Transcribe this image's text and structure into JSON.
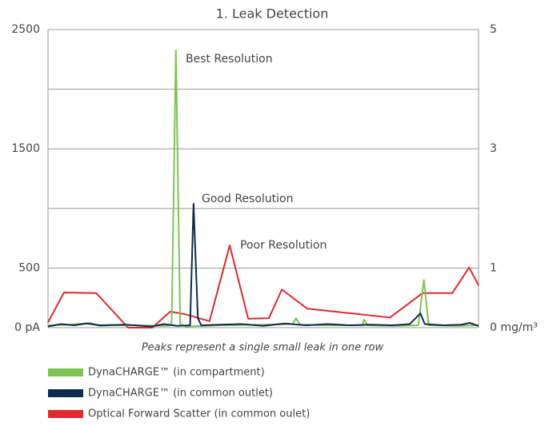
{
  "chart_data": {
    "type": "line",
    "title": "1. Leak Detection",
    "caption": "Peaks represent a single small leak in one row",
    "xlim": [
      0,
      100
    ],
    "ylim": [
      0,
      2500
    ],
    "yticks": [
      {
        "value": 0,
        "label": "0 pA"
      },
      500,
      1500,
      2500
    ],
    "y2lim": [
      0,
      5
    ],
    "y2ticks": [
      {
        "value": 0,
        "label": "0 mg/m³"
      },
      1,
      3,
      5
    ],
    "ygrid": [
      500,
      1000,
      1500,
      2000,
      2500
    ],
    "legend": "bottom-left",
    "annotations": [
      "Best Resolution",
      "Good Resolution",
      "Poor Resolution"
    ],
    "series": [
      {
        "name": "DynaCHARGE™ (in compartment)",
        "color": "#7dc353",
        "x": [
          0,
          5,
          10,
          12,
          15,
          20,
          27,
          28.7,
          29.7,
          30.7,
          32,
          40,
          50,
          56.8,
          57.6,
          58.5,
          65,
          73,
          73.4,
          74.3,
          80,
          86,
          87.3,
          88.4,
          95,
          100
        ],
        "values": [
          20,
          25,
          40,
          15,
          20,
          20,
          15,
          20,
          2325,
          30,
          10,
          20,
          25,
          30,
          80,
          25,
          20,
          20,
          67,
          20,
          15,
          20,
          400,
          20,
          15,
          20
        ]
      },
      {
        "name": "DynaCHARGE™ (in common outlet)",
        "color": "#0d2b4e",
        "x": [
          0,
          3,
          6,
          9,
          12,
          18,
          24,
          27,
          30,
          33,
          33.8,
          34.8,
          35.6,
          40,
          45,
          50,
          55,
          60,
          65,
          70,
          75,
          80,
          84,
          86.5,
          87.5,
          92,
          96,
          98,
          100
        ],
        "values": [
          10,
          30,
          20,
          35,
          20,
          25,
          10,
          30,
          15,
          20,
          1040,
          80,
          20,
          25,
          30,
          15,
          35,
          20,
          30,
          20,
          25,
          20,
          30,
          120,
          30,
          20,
          25,
          40,
          15
        ]
      },
      {
        "name": "Optical Forward Scatter (in common oulet)",
        "color": "#e0282e",
        "axis": "y2",
        "x": [
          0,
          3.7,
          11.2,
          18.6,
          24.2,
          28.4,
          31.6,
          37.5,
          42.2,
          46.5,
          51.3,
          54.3,
          60.2,
          79.4,
          87,
          93.9,
          97.8,
          100
        ],
        "values": [
          0.09,
          0.59,
          0.58,
          0,
          0,
          0.27,
          0.23,
          0.11,
          1.38,
          0.15,
          0.16,
          0.64,
          0.32,
          0.17,
          0.58,
          0.58,
          1.01,
          0.71
        ]
      }
    ]
  }
}
